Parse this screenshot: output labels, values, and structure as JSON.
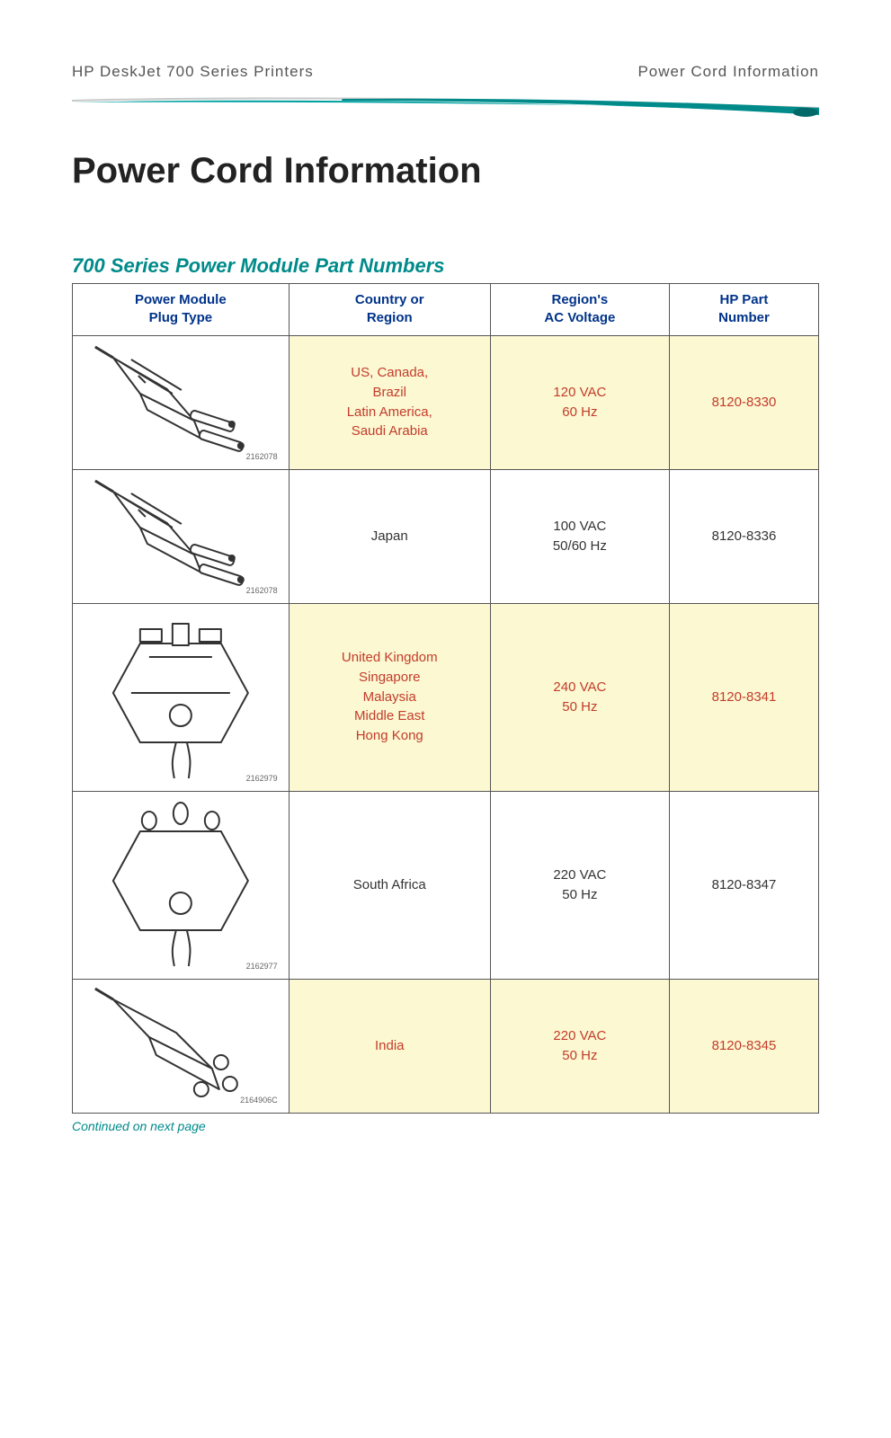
{
  "header": {
    "left": "HP DeskJet 700 Series Printers",
    "right": "Power Cord Information"
  },
  "title": "Power Cord Information",
  "section_title": "700 Series Power Module Part Numbers",
  "columns": [
    "Power Module\nPlug Type",
    "Country or\nRegion",
    "Region's\nAC Voltage",
    "HP Part\nNumber"
  ],
  "rows": [
    {
      "highlight": true,
      "plug_shape": "us",
      "plug_id": "2162078",
      "plug_tall": false,
      "country": "US, Canada,\nBrazil\nLatin America,\nSaudi Arabia",
      "voltage": "120 VAC\n60 Hz",
      "part": "8120-8330"
    },
    {
      "highlight": false,
      "plug_shape": "us",
      "plug_id": "2162078",
      "plug_tall": false,
      "country": "Japan",
      "voltage": "100 VAC\n50/60 Hz",
      "part": "8120-8336"
    },
    {
      "highlight": true,
      "plug_shape": "uk",
      "plug_id": "2162979",
      "plug_tall": true,
      "country": "United Kingdom\nSingapore\nMalaysia\nMiddle East\nHong Kong",
      "voltage": "240 VAC\n50 Hz",
      "part": "8120-8341"
    },
    {
      "highlight": false,
      "plug_shape": "sa",
      "plug_id": "2162977",
      "plug_tall": true,
      "country": "South Africa",
      "voltage": "220 VAC\n50 Hz",
      "part": "8120-8347"
    },
    {
      "highlight": true,
      "plug_shape": "in",
      "plug_id": "2164906C",
      "plug_tall": false,
      "country": "India",
      "voltage": "220 VAC\n50 Hz",
      "part": "8120-8345"
    }
  ],
  "continued": "Continued on next page",
  "colors": {
    "teal": "#008a8a",
    "navy": "#00338a",
    "highlight_bg": "#fbf8d2",
    "highlight_text": "#c43c2c",
    "border": "#555555",
    "body_text": "#333333",
    "header_text": "#555555"
  }
}
